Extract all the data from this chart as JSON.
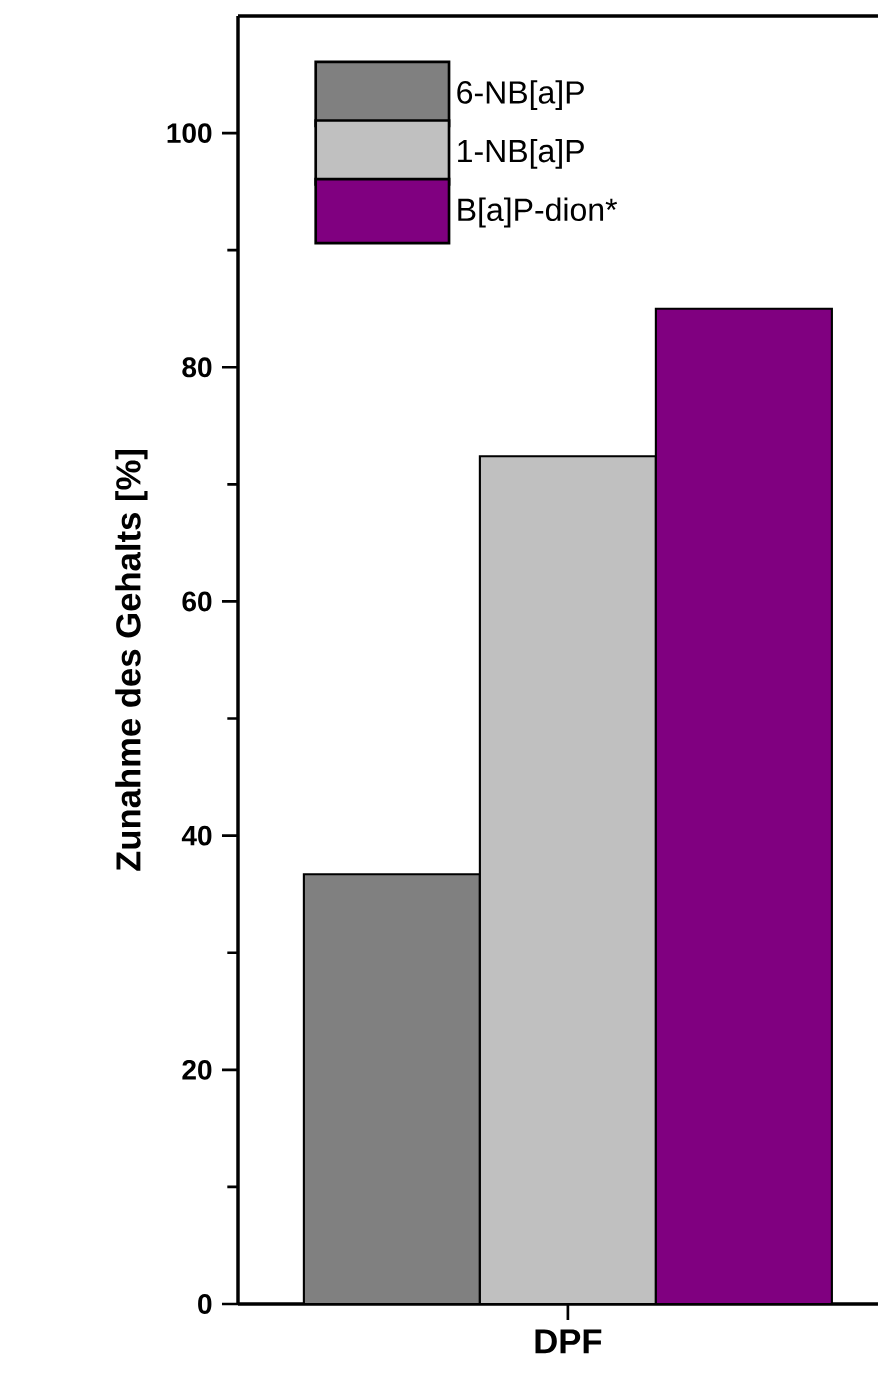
{
  "chart_data": {
    "type": "bar",
    "ylabel": "Zunahme des Gehalts [%]",
    "categories": [
      "DPF"
    ],
    "series": [
      {
        "name": "6-NB[a]P",
        "color": "#808080",
        "values": [
          36.7
        ]
      },
      {
        "name": "1-NB[a]P",
        "color": "#c0c0c0",
        "values": [
          72.4
        ]
      },
      {
        "name": "B[a]P-dion*",
        "color": "#800080",
        "values": [
          85.0
        ]
      }
    ],
    "ylim": [
      0,
      110
    ],
    "yticks": [
      0,
      20,
      40,
      60,
      80,
      100
    ],
    "legend": "top left"
  }
}
